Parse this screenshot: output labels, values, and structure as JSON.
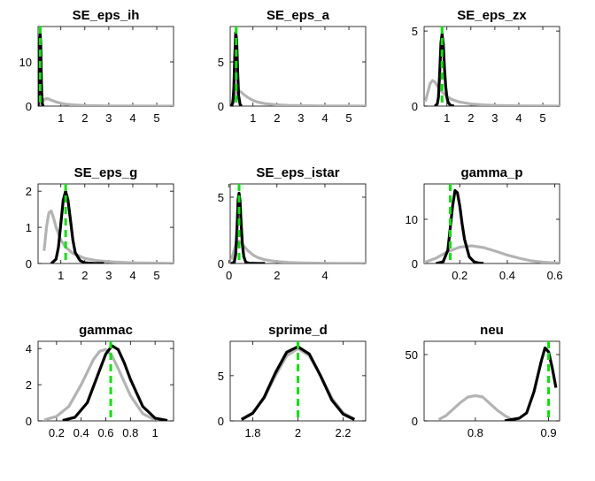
{
  "figure": {
    "legend": {
      "prior": "gray line",
      "posterior": "black line",
      "mode": "green dashed line"
    },
    "colors": {
      "prior": "#b3b3b3",
      "posterior": "#000000",
      "mode": "#00e600"
    }
  },
  "chart_data": [
    {
      "type": "line",
      "title": "SE_eps_ih",
      "xlim": [
        0.05,
        5.7
      ],
      "ylim": [
        0,
        18
      ],
      "xticks": [
        1,
        2,
        3,
        4,
        5
      ],
      "yticks": [
        0,
        10
      ],
      "mode": 0.14,
      "series": [
        {
          "role": "prior",
          "x": [
            0.1,
            0.2,
            0.3,
            0.4,
            0.5,
            0.6,
            0.8,
            1.0,
            1.2,
            1.5,
            2,
            2.5,
            3,
            4,
            5,
            5.7
          ],
          "y": [
            0.3,
            0.9,
            1.5,
            1.7,
            1.6,
            1.35,
            0.95,
            0.65,
            0.45,
            0.28,
            0.14,
            0.08,
            0.05,
            0.02,
            0.01,
            0.0
          ]
        },
        {
          "role": "posterior",
          "x": [
            0.05,
            0.08,
            0.1,
            0.12,
            0.14,
            0.16,
            0.18,
            0.2,
            0.23,
            0.26
          ],
          "y": [
            0,
            2,
            9,
            15,
            16.3,
            14,
            8,
            3,
            0.5,
            0
          ]
        }
      ]
    },
    {
      "type": "line",
      "title": "SE_eps_a",
      "xlim": [
        0.05,
        5.7
      ],
      "ylim": [
        0,
        9
      ],
      "xticks": [
        1,
        2,
        3,
        4,
        5
      ],
      "yticks": [
        0,
        5
      ],
      "mode": 0.3,
      "series": [
        {
          "role": "prior",
          "x": [
            0.1,
            0.2,
            0.3,
            0.4,
            0.5,
            0.6,
            0.8,
            1.0,
            1.2,
            1.5,
            2,
            2.5,
            3,
            4,
            5,
            5.7
          ],
          "y": [
            0.3,
            0.9,
            1.5,
            1.7,
            1.6,
            1.35,
            0.95,
            0.65,
            0.45,
            0.28,
            0.14,
            0.08,
            0.05,
            0.02,
            0.01,
            0.0
          ]
        },
        {
          "role": "posterior",
          "x": [
            0.1,
            0.16,
            0.2,
            0.24,
            0.28,
            0.32,
            0.36,
            0.4,
            0.46,
            0.52
          ],
          "y": [
            0,
            0.4,
            2,
            5.5,
            8.3,
            7.5,
            4,
            1.2,
            0.2,
            0
          ]
        }
      ]
    },
    {
      "type": "line",
      "title": "SE_eps_zx",
      "xlim": [
        0.05,
        5.7
      ],
      "ylim": [
        0,
        5.3
      ],
      "xticks": [
        1,
        2,
        3,
        4,
        5
      ],
      "yticks": [
        0,
        5
      ],
      "mode": 0.8,
      "series": [
        {
          "role": "prior",
          "x": [
            0.1,
            0.2,
            0.3,
            0.4,
            0.5,
            0.6,
            0.8,
            1.0,
            1.2,
            1.5,
            2,
            2.5,
            3,
            4,
            5,
            5.7
          ],
          "y": [
            0.3,
            0.9,
            1.5,
            1.7,
            1.6,
            1.35,
            0.95,
            0.65,
            0.45,
            0.28,
            0.14,
            0.08,
            0.05,
            0.02,
            0.01,
            0.0
          ]
        },
        {
          "role": "posterior",
          "x": [
            0.5,
            0.6,
            0.65,
            0.7,
            0.75,
            0.8,
            0.85,
            0.9,
            0.95,
            1.0,
            1.05,
            1.15,
            1.3
          ],
          "y": [
            0,
            0.15,
            0.6,
            2.2,
            4.2,
            4.8,
            4.1,
            2.5,
            1.3,
            0.6,
            0.25,
            0.05,
            0
          ]
        }
      ]
    },
    {
      "type": "line",
      "title": "SE_eps_g",
      "xlim": [
        0.05,
        5.7
      ],
      "ylim": [
        0,
        2.2
      ],
      "xticks": [
        1,
        2,
        3,
        4,
        5
      ],
      "yticks": [
        0,
        1,
        2
      ],
      "mode": 1.2,
      "series": [
        {
          "role": "prior",
          "x": [
            0.3,
            0.4,
            0.5,
            0.6,
            0.7,
            0.8,
            1.0,
            1.2,
            1.5,
            2,
            2.5,
            3,
            4,
            5,
            5.7
          ],
          "y": [
            0.35,
            1.0,
            1.4,
            1.45,
            1.25,
            1.0,
            0.65,
            0.45,
            0.28,
            0.14,
            0.08,
            0.05,
            0.02,
            0.01,
            0.0
          ]
        },
        {
          "role": "posterior",
          "x": [
            0.6,
            0.8,
            0.9,
            1.0,
            1.1,
            1.2,
            1.3,
            1.4,
            1.5,
            1.6,
            1.8,
            2.0,
            2.4,
            2.8
          ],
          "y": [
            0,
            0.12,
            0.45,
            1.1,
            1.75,
            2.0,
            1.75,
            1.2,
            0.65,
            0.3,
            0.08,
            0.02,
            0.0,
            0.0
          ]
        }
      ]
    },
    {
      "type": "line",
      "title": "SE_eps_istar",
      "xlim": [
        0.05,
        5.7
      ],
      "ylim": [
        0,
        6
      ],
      "xticks": [
        0,
        2,
        4
      ],
      "yticks": [
        0,
        5
      ],
      "mode": 0.42,
      "series": [
        {
          "role": "prior",
          "x": [
            0.1,
            0.2,
            0.3,
            0.4,
            0.5,
            0.6,
            0.8,
            1.0,
            1.2,
            1.5,
            2,
            2.5,
            3,
            4,
            5,
            5.7
          ],
          "y": [
            0.3,
            0.9,
            1.5,
            1.7,
            1.6,
            1.35,
            0.95,
            0.65,
            0.45,
            0.28,
            0.14,
            0.08,
            0.05,
            0.02,
            0.01,
            0.0
          ]
        },
        {
          "role": "posterior",
          "x": [
            0.1,
            0.22,
            0.28,
            0.34,
            0.38,
            0.42,
            0.46,
            0.5,
            0.56,
            0.62,
            0.7,
            0.85,
            1.2,
            1.5
          ],
          "y": [
            0,
            0.1,
            0.7,
            3,
            4.8,
            5.3,
            4.7,
            3.2,
            1.4,
            0.5,
            0.1,
            0.02,
            0.0,
            0.0
          ]
        }
      ]
    },
    {
      "type": "line",
      "title": "gamma_p",
      "xlim": [
        0.05,
        0.62
      ],
      "ylim": [
        0,
        18
      ],
      "xticks": [
        0.2,
        0.4,
        0.6
      ],
      "yticks": [
        0,
        10
      ],
      "mode": 0.16,
      "series": [
        {
          "role": "prior",
          "x": [
            0.05,
            0.1,
            0.15,
            0.2,
            0.25,
            0.3,
            0.35,
            0.4,
            0.45,
            0.5,
            0.55,
            0.6,
            0.62
          ],
          "y": [
            0.2,
            1.2,
            2.7,
            3.7,
            4.0,
            3.6,
            2.8,
            1.9,
            1.2,
            0.6,
            0.3,
            0.12,
            0.08
          ]
        },
        {
          "role": "posterior",
          "x": [
            0.1,
            0.13,
            0.15,
            0.16,
            0.17,
            0.18,
            0.19,
            0.2,
            0.21,
            0.22,
            0.24,
            0.26,
            0.28,
            0.3
          ],
          "y": [
            0,
            0.4,
            3,
            8,
            13,
            16.5,
            16,
            13,
            9,
            5.5,
            1.5,
            0.4,
            0.1,
            0.0
          ]
        }
      ]
    },
    {
      "type": "line",
      "title": "gammac",
      "xlim": [
        0.05,
        1.15
      ],
      "ylim": [
        0,
        4.4
      ],
      "xticks": [
        0.2,
        0.4,
        0.6,
        0.8,
        1
      ],
      "xticklabels": [
        "0.2",
        "0.4",
        "0.6",
        "0.8",
        "1"
      ],
      "yticks": [
        0,
        2,
        4
      ],
      "mode": 0.64,
      "series": [
        {
          "role": "prior",
          "x": [
            0.1,
            0.2,
            0.3,
            0.4,
            0.5,
            0.55,
            0.6,
            0.65,
            0.7,
            0.8,
            0.9,
            1.0
          ],
          "y": [
            0.05,
            0.25,
            0.8,
            2.0,
            3.4,
            3.85,
            3.95,
            3.6,
            2.9,
            1.4,
            0.4,
            0.05
          ]
        },
        {
          "role": "posterior",
          "x": [
            0.25,
            0.35,
            0.45,
            0.55,
            0.6,
            0.65,
            0.7,
            0.75,
            0.8,
            0.9,
            1.0,
            1.1
          ],
          "y": [
            0.02,
            0.2,
            1.0,
            2.8,
            3.7,
            4.15,
            3.95,
            3.2,
            2.3,
            0.8,
            0.15,
            0.02
          ]
        }
      ]
    },
    {
      "type": "line",
      "title": "sprime_d",
      "xlim": [
        1.7,
        2.3
      ],
      "ylim": [
        0,
        8.8
      ],
      "xticks": [
        1.8,
        2,
        2.2
      ],
      "xticklabels": [
        "1.8",
        "2",
        "2.2"
      ],
      "yticks": [
        0,
        5
      ],
      "mode": 2.0,
      "series": [
        {
          "role": "prior",
          "x": [
            1.75,
            1.8,
            1.85,
            1.9,
            1.95,
            2.0,
            2.05,
            2.1,
            2.15,
            2.2,
            2.25
          ],
          "y": [
            0.2,
            0.9,
            2.5,
            5,
            7.2,
            8.0,
            7.2,
            5,
            2.5,
            0.9,
            0.2
          ]
        },
        {
          "role": "posterior",
          "x": [
            1.75,
            1.8,
            1.85,
            1.9,
            1.95,
            2.0,
            2.05,
            2.1,
            2.15,
            2.2,
            2.25
          ],
          "y": [
            0.15,
            0.85,
            2.6,
            5.3,
            7.6,
            8.2,
            7.4,
            5.0,
            2.3,
            0.75,
            0.15
          ]
        }
      ]
    },
    {
      "type": "line",
      "title": "neu",
      "xlim": [
        0.73,
        0.915
      ],
      "ylim": [
        0,
        60
      ],
      "xticks": [
        0.8,
        0.9
      ],
      "yticks": [
        0,
        50
      ],
      "mode": 0.9,
      "series": [
        {
          "role": "prior",
          "x": [
            0.75,
            0.76,
            0.77,
            0.78,
            0.79,
            0.8,
            0.81,
            0.82,
            0.83,
            0.84,
            0.85
          ],
          "y": [
            1,
            4,
            9,
            14,
            18,
            19,
            18,
            13,
            8,
            4,
            1
          ]
        },
        {
          "role": "posterior",
          "x": [
            0.84,
            0.86,
            0.87,
            0.88,
            0.89,
            0.895,
            0.9,
            0.905,
            0.91
          ],
          "y": [
            0,
            2,
            6,
            22,
            45,
            55,
            52,
            40,
            25
          ]
        }
      ]
    }
  ]
}
